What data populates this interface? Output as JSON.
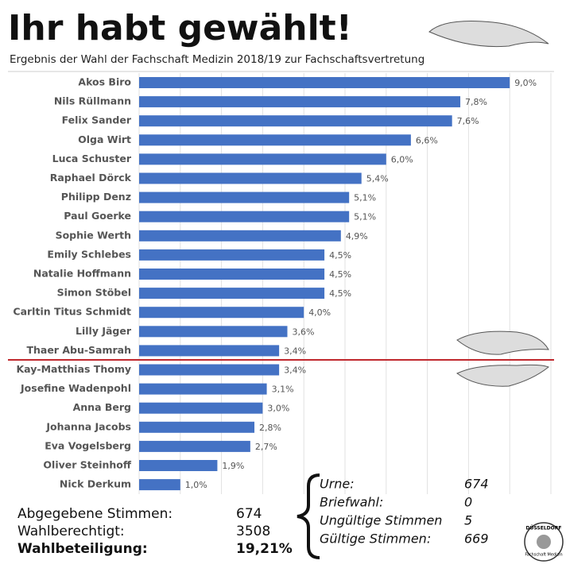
{
  "chart_data": {
    "type": "hbar",
    "title": "Ihr habt gewählt!",
    "subtitle": "Ergebnis der Wahl der Fachschaft Medizin 2018/19 zur Fachschaftsvertretung",
    "categories": [
      "Akos Biro",
      "Nils Rüllmann",
      "Felix Sander",
      "Olga Wirt",
      "Luca Schuster",
      "Raphael Dörck",
      "Philipp Denz",
      "Paul Goerke",
      "Sophie Werth",
      "Emily Schlebes",
      "Natalie Hoffmann",
      "Simon Stöbel",
      "Carltin Titus Schmidt",
      "Lilly Jäger",
      "Thaer Abu-Samrah",
      "Kay-Matthias Thomy",
      "Josefine Wadenpohl",
      "Anna Berg",
      "Johanna Jacobs",
      "Eva Vogelsberg",
      "Oliver Steinhoff",
      "Nick Derkum"
    ],
    "values": [
      9.0,
      7.8,
      7.6,
      6.6,
      6.0,
      5.4,
      5.1,
      5.1,
      4.9,
      4.5,
      4.5,
      4.5,
      4.0,
      3.6,
      3.4,
      3.4,
      3.1,
      3.0,
      2.8,
      2.7,
      1.9,
      1.0
    ],
    "value_labels": [
      "9,0%",
      "7,8%",
      "7,6%",
      "6,6%",
      "6,0%",
      "5,4%",
      "5,1%",
      "5,1%",
      "4,9%",
      "4,5%",
      "4,5%",
      "4,5%",
      "4,0%",
      "3,6%",
      "3,4%",
      "3,4%",
      "3,1%",
      "3,0%",
      "2,8%",
      "2,7%",
      "1,9%",
      "1,0%"
    ],
    "color": "#4472c4",
    "xlim": [
      0,
      10
    ],
    "xticks": [
      0,
      1,
      2,
      3,
      4,
      5,
      6,
      7,
      8,
      9,
      10
    ],
    "grid": true
  },
  "summary": {
    "rows": [
      [
        "Abgegebene Stimmen:",
        674
      ],
      [
        "Wahlberechtigt:",
        3508
      ],
      [
        "Wahlbeteiligung:",
        "19,21%"
      ]
    ],
    "ballots": [
      [
        "Urne:",
        674
      ],
      [
        "Briefwahl:",
        0
      ],
      [
        "Ungültige Stimmen",
        5
      ],
      [
        "Gültige Stimmen:",
        669
      ]
    ]
  },
  "logo": [
    "DÜSSELDORF",
    "Fachschaft Medizin"
  ]
}
